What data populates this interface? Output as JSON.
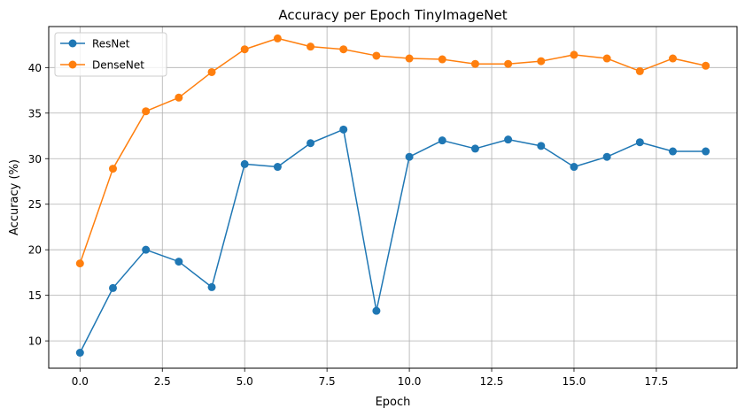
{
  "chart_data": {
    "type": "line",
    "title": "Accuracy per Epoch TinyImageNet",
    "xlabel": "Epoch",
    "ylabel": "Accuracy (%)",
    "xlim": [
      -0.95,
      19.95
    ],
    "ylim": [
      7.0,
      44.5
    ],
    "xticks": [
      0.0,
      2.5,
      5.0,
      7.5,
      10.0,
      12.5,
      15.0,
      17.5
    ],
    "xtick_labels": [
      "0.0",
      "2.5",
      "5.0",
      "7.5",
      "10.0",
      "12.5",
      "15.0",
      "17.5"
    ],
    "yticks": [
      10,
      15,
      20,
      25,
      30,
      35,
      40
    ],
    "ytick_labels": [
      "10",
      "15",
      "20",
      "25",
      "30",
      "35",
      "40"
    ],
    "grid": true,
    "legend_position": "top-left",
    "x": [
      0,
      1,
      2,
      3,
      4,
      5,
      6,
      7,
      8,
      9,
      10,
      11,
      12,
      13,
      14,
      15,
      16,
      17,
      18,
      19
    ],
    "series": [
      {
        "name": "ResNet",
        "color": "#1f77b4",
        "values": [
          8.7,
          15.8,
          20.0,
          18.7,
          15.9,
          29.4,
          29.1,
          31.7,
          33.2,
          13.3,
          30.2,
          32.0,
          31.1,
          32.1,
          31.4,
          29.1,
          30.2,
          31.8,
          30.8,
          30.8
        ]
      },
      {
        "name": "DenseNet",
        "color": "#ff7f0e",
        "values": [
          18.5,
          28.9,
          35.2,
          36.7,
          39.5,
          42.0,
          43.2,
          42.3,
          42.0,
          41.3,
          41.0,
          40.9,
          40.4,
          40.4,
          40.7,
          41.4,
          41.0,
          39.6,
          41.0,
          40.2
        ]
      }
    ]
  }
}
